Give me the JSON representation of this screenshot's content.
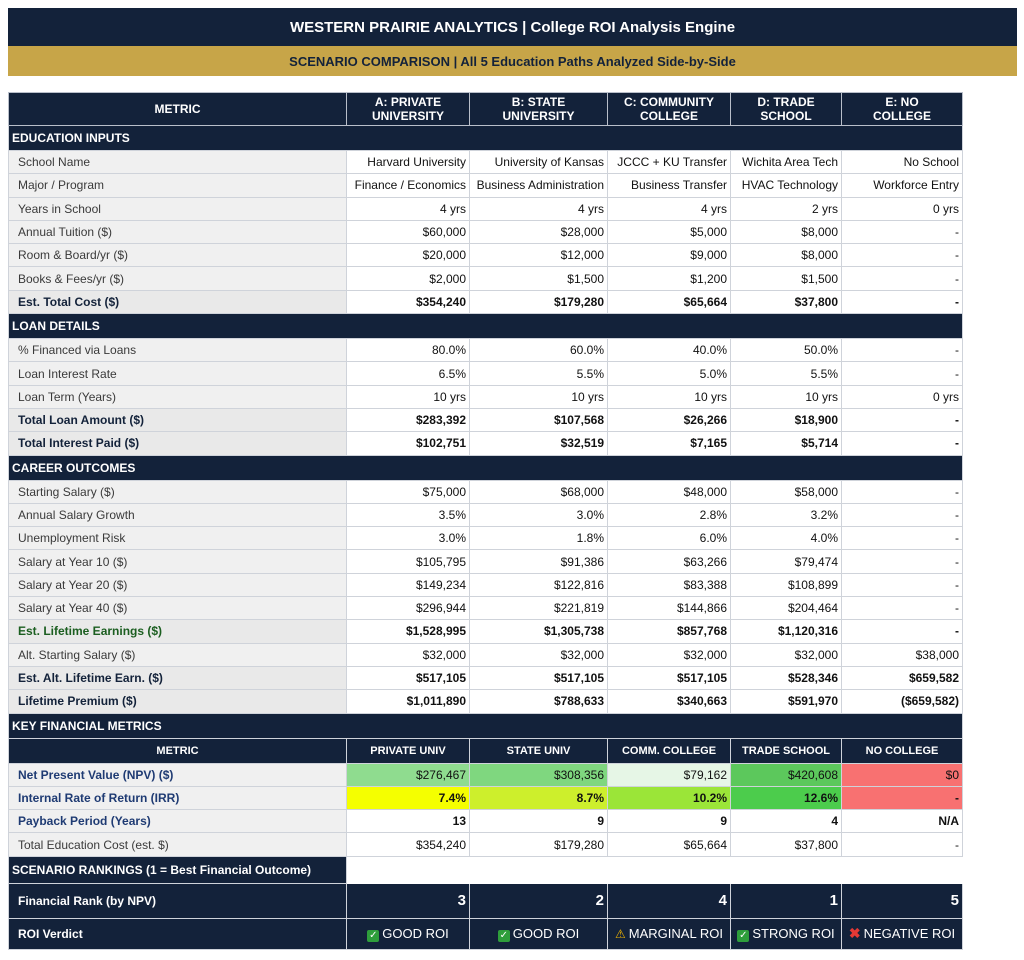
{
  "title": "WESTERN PRAIRIE ANALYTICS  |  College ROI Analysis Engine",
  "subtitle": "SCENARIO COMPARISON  |  All 5 Education Paths Analyzed Side-by-Side",
  "header": {
    "metric": "METRIC",
    "cols": [
      [
        "A: PRIVATE",
        "UNIVERSITY"
      ],
      [
        "B: STATE",
        "UNIVERSITY"
      ],
      [
        "C: COMMUNITY",
        "COLLEGE"
      ],
      [
        "D: TRADE",
        "SCHOOL"
      ],
      [
        "E: NO",
        "COLLEGE"
      ]
    ]
  },
  "sections": [
    {
      "title": "EDUCATION INPUTS",
      "rows": [
        {
          "label": "School Name",
          "values": [
            "Harvard University",
            "University of Kansas",
            "JCCC + KU Transfer",
            "Wichita Area Tech",
            "No School"
          ]
        },
        {
          "label": "Major / Program",
          "values": [
            "Finance / Economics",
            "Business Administration",
            "Business Transfer",
            "HVAC Technology",
            "Workforce Entry"
          ]
        },
        {
          "label": "Years in School",
          "values": [
            "4 yrs",
            "4 yrs",
            "4 yrs",
            "2 yrs",
            "0 yrs"
          ]
        },
        {
          "label": "Annual Tuition ($)",
          "values": [
            "$60,000",
            "$28,000",
            "$5,000",
            "$8,000",
            "-"
          ]
        },
        {
          "label": "Room & Board/yr ($)",
          "values": [
            "$20,000",
            "$12,000",
            "$9,000",
            "$8,000",
            "-"
          ]
        },
        {
          "label": "Books & Fees/yr ($)",
          "values": [
            "$2,000",
            "$1,500",
            "$1,200",
            "$1,500",
            "-"
          ]
        },
        {
          "label": "Est. Total Cost ($)",
          "values": [
            "$354,240",
            "$179,280",
            "$65,664",
            "$37,800",
            "-"
          ],
          "bold": true
        }
      ]
    },
    {
      "title": "LOAN DETAILS",
      "rows": [
        {
          "label": "% Financed via Loans",
          "values": [
            "80.0%",
            "60.0%",
            "40.0%",
            "50.0%",
            "-"
          ]
        },
        {
          "label": "Loan Interest Rate",
          "values": [
            "6.5%",
            "5.5%",
            "5.0%",
            "5.5%",
            "-"
          ]
        },
        {
          "label": "Loan Term (Years)",
          "values": [
            "10 yrs",
            "10 yrs",
            "10 yrs",
            "10 yrs",
            "0 yrs"
          ]
        },
        {
          "label": "Total Loan Amount ($)",
          "values": [
            "$283,392",
            "$107,568",
            "$26,266",
            "$18,900",
            "-"
          ],
          "bold": true
        },
        {
          "label": "Total Interest Paid ($)",
          "values": [
            "$102,751",
            "$32,519",
            "$7,165",
            "$5,714",
            "-"
          ],
          "bold": true
        }
      ]
    },
    {
      "title": "CAREER OUTCOMES",
      "rows": [
        {
          "label": "Starting Salary ($)",
          "values": [
            "$75,000",
            "$68,000",
            "$48,000",
            "$58,000",
            "-"
          ]
        },
        {
          "label": "Annual Salary Growth",
          "values": [
            "3.5%",
            "3.0%",
            "2.8%",
            "3.2%",
            "-"
          ]
        },
        {
          "label": "Unemployment Risk",
          "values": [
            "3.0%",
            "1.8%",
            "6.0%",
            "4.0%",
            "-"
          ]
        },
        {
          "label": "Salary at Year 10 ($)",
          "values": [
            "$105,795",
            "$91,386",
            "$63,266",
            "$79,474",
            "-"
          ]
        },
        {
          "label": "Salary at Year 20 ($)",
          "values": [
            "$149,234",
            "$122,816",
            "$83,388",
            "$108,899",
            "-"
          ]
        },
        {
          "label": "Salary at Year 40 ($)",
          "values": [
            "$296,944",
            "$221,819",
            "$144,866",
            "$204,464",
            "-"
          ]
        },
        {
          "label": "Est. Lifetime Earnings ($)",
          "values": [
            "$1,528,995",
            "$1,305,738",
            "$857,768",
            "$1,120,316",
            "-"
          ],
          "bold": true,
          "green": true
        },
        {
          "label": "Alt. Starting Salary ($)",
          "values": [
            "$32,000",
            "$32,000",
            "$32,000",
            "$32,000",
            "$38,000"
          ]
        },
        {
          "label": "Est. Alt. Lifetime Earn. ($)",
          "values": [
            "$517,105",
            "$517,105",
            "$517,105",
            "$528,346",
            "$659,582"
          ],
          "bold": true
        },
        {
          "label": "Lifetime Premium ($)",
          "values": [
            "$1,011,890",
            "$788,633",
            "$340,663",
            "$591,970",
            "($659,582)"
          ],
          "bold": true
        }
      ]
    }
  ],
  "key_metrics": {
    "title": "KEY FINANCIAL METRICS",
    "header": [
      "METRIC",
      "PRIVATE UNIV",
      "STATE UNIV",
      "COMM. COLLEGE",
      "TRADE SCHOOL",
      "NO COLLEGE"
    ],
    "rows": [
      {
        "label": "Net Present Value (NPV) ($)",
        "values": [
          "$276,467",
          "$308,356",
          "$79,162",
          "$420,608",
          "$0"
        ],
        "colors": [
          "#8fdc8f",
          "#7fd77f",
          "#e6f6e6",
          "#5cc85c",
          "#f87171"
        ]
      },
      {
        "label": "Internal Rate of Return (IRR)",
        "values": [
          "7.4%",
          "8.7%",
          "10.2%",
          "12.6%",
          "-"
        ],
        "colors": [
          "#f5ff00",
          "#cdef2c",
          "#9be538",
          "#4ccc4c",
          "#f87171"
        ],
        "bold": true
      },
      {
        "label": "Payback Period (Years)",
        "values": [
          "13",
          "9",
          "9",
          "4",
          "N/A"
        ],
        "bold": true
      },
      {
        "label": "Total Education Cost (est. $)",
        "values": [
          "$354,240",
          "$179,280",
          "$65,664",
          "$37,800",
          "-"
        ],
        "plain": true
      }
    ]
  },
  "rankings": {
    "title": "SCENARIO RANKINGS  (1 = Best Financial Outcome)",
    "rank_label": "Financial Rank (by NPV)",
    "ranks": [
      "3",
      "2",
      "4",
      "1",
      "5"
    ],
    "verdict_label": "ROI Verdict",
    "verdicts": [
      {
        "icon": "check-icon",
        "text": "GOOD ROI"
      },
      {
        "icon": "check-icon",
        "text": "GOOD ROI"
      },
      {
        "icon": "warning-icon",
        "text": "MARGINAL ROI"
      },
      {
        "icon": "check-icon",
        "text": "STRONG ROI"
      },
      {
        "icon": "x-icon",
        "text": "NEGATIVE ROI"
      }
    ]
  }
}
